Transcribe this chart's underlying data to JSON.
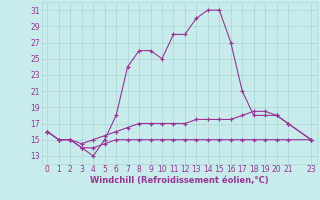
{
  "xlabel": "Windchill (Refroidissement éolien,°C)",
  "xlim": [
    -0.5,
    23.5
  ],
  "ylim": [
    12,
    32
  ],
  "yticks": [
    13,
    15,
    17,
    19,
    21,
    23,
    25,
    27,
    29,
    31
  ],
  "xticks": [
    0,
    1,
    2,
    3,
    4,
    5,
    6,
    7,
    8,
    9,
    10,
    11,
    12,
    13,
    14,
    15,
    16,
    17,
    18,
    19,
    20,
    21,
    23
  ],
  "bg_color": "#c8ecec",
  "grid_color": "#b0d8d8",
  "line_color": "#993399",
  "curve1_x": [
    0,
    1,
    2,
    3,
    4,
    5,
    6,
    7,
    8,
    9,
    10,
    11,
    12,
    13,
    14,
    15,
    16,
    17,
    18,
    19,
    20,
    21,
    23
  ],
  "curve1_y": [
    16,
    15,
    15,
    14,
    13,
    15,
    18,
    24,
    26,
    26,
    25,
    28,
    28,
    30,
    31,
    31,
    27,
    21,
    18,
    18,
    18,
    17,
    15
  ],
  "curve2_x": [
    0,
    1,
    2,
    3,
    4,
    5,
    6,
    7,
    8,
    9,
    10,
    11,
    12,
    13,
    14,
    15,
    16,
    17,
    18,
    19,
    20,
    21,
    23
  ],
  "curve2_y": [
    16,
    15,
    15,
    14.5,
    15,
    15.5,
    16,
    16.5,
    17,
    17,
    17,
    17,
    17,
    17.5,
    17.5,
    17.5,
    17.5,
    18,
    18.5,
    18.5,
    18,
    17,
    15
  ],
  "curve3_x": [
    0,
    1,
    2,
    3,
    4,
    5,
    6,
    7,
    8,
    9,
    10,
    11,
    12,
    13,
    14,
    15,
    16,
    17,
    18,
    19,
    20,
    21,
    23
  ],
  "curve3_y": [
    16,
    15,
    15,
    14,
    14,
    14.5,
    15,
    15,
    15,
    15,
    15,
    15,
    15,
    15,
    15,
    15,
    15,
    15,
    15,
    15,
    15,
    15,
    15
  ],
  "tick_fontsize": 5.5,
  "xlabel_fontsize": 6.0
}
